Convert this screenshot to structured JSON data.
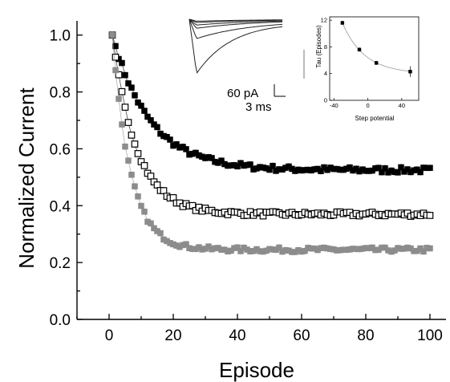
{
  "chart_data": [
    {
      "type": "scatter",
      "xlabel": "Episode",
      "ylabel": "Normalized Current",
      "xlim": [
        -10,
        105
      ],
      "ylim": [
        0.0,
        1.05
      ],
      "x_ticks": [
        "0",
        "20",
        "40",
        "60",
        "80",
        "100"
      ],
      "y_ticks": [
        "0.0",
        "0.2",
        "0.4",
        "0.6",
        "0.8",
        "1.0"
      ],
      "series": [
        {
          "marker": "filled-square",
          "color": "#000000",
          "start": 1.0,
          "plateau": 0.525,
          "tau": 11.8,
          "noise": 0.01
        },
        {
          "marker": "open-square",
          "color": "#000000",
          "start": 1.0,
          "plateau": 0.37,
          "tau": 7.6,
          "noise": 0.008
        },
        {
          "marker": "filled-square",
          "color": "#8c8c8c",
          "start": 1.0,
          "plateau": 0.245,
          "tau": 5.6,
          "noise": 0.008
        }
      ],
      "x_range": [
        1,
        100
      ]
    },
    {
      "type": "line",
      "xlabel": "Step potential",
      "ylabel": "Tau (Episodes)",
      "xlim": [
        -45,
        60
      ],
      "ylim": [
        0,
        12.5
      ],
      "x_ticks": [
        "-40",
        "0",
        "40"
      ],
      "y_ticks": [
        "0",
        "4",
        "8",
        "12"
      ],
      "x": [
        -30,
        -10,
        10,
        50
      ],
      "y": [
        11.6,
        7.6,
        5.6,
        4.3
      ],
      "err": [
        0.3,
        0.3,
        0.3,
        0.8
      ]
    }
  ],
  "traces_inset": {
    "scale_current": "60 pA",
    "scale_time": "3 ms",
    "trace_peaks": [
      0.03,
      0.05,
      0.09,
      0.14,
      0.3,
      0.84
    ]
  }
}
